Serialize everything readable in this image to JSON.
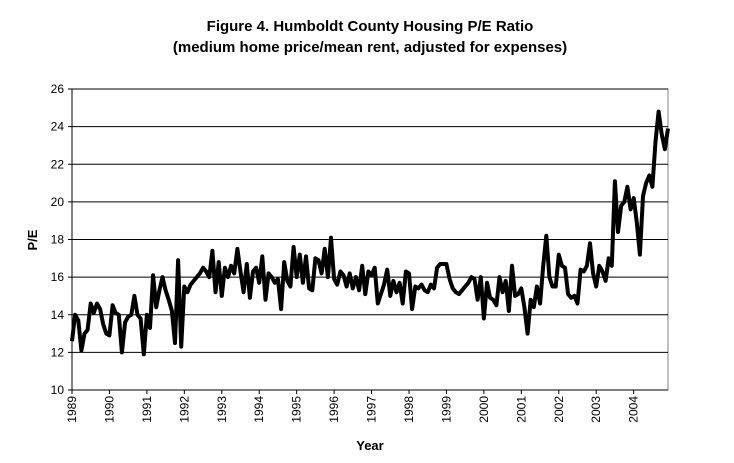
{
  "chart_data": {
    "type": "line",
    "title": "Figure 4. Humboldt County Housing P/E Ratio",
    "subtitle": "(medium home price/mean rent, adjusted for expenses)",
    "x_label": "Year",
    "y_label": "P/E",
    "color": "#000000",
    "grid": true,
    "xlim": [
      1989,
      2004.917
    ],
    "ylim": [
      10,
      26
    ],
    "xticks": [
      1989,
      1990,
      1991,
      1992,
      1993,
      1994,
      1995,
      1996,
      1997,
      1998,
      1999,
      2000,
      2001,
      2002,
      2003,
      2004
    ],
    "yticks": [
      10,
      12,
      14,
      16,
      18,
      20,
      22,
      24,
      26
    ],
    "x": [
      1989,
      1989.083,
      1989.167,
      1989.25,
      1989.333,
      1989.417,
      1989.5,
      1989.583,
      1989.667,
      1989.75,
      1989.833,
      1989.917,
      1990,
      1990.083,
      1990.167,
      1990.25,
      1990.333,
      1990.417,
      1990.5,
      1990.583,
      1990.667,
      1990.75,
      1990.833,
      1990.917,
      1991,
      1991.083,
      1991.167,
      1991.25,
      1991.333,
      1991.417,
      1991.5,
      1991.583,
      1991.667,
      1991.75,
      1991.833,
      1991.917,
      1992,
      1992.083,
      1992.167,
      1992.25,
      1992.333,
      1992.417,
      1992.5,
      1992.583,
      1992.667,
      1992.75,
      1992.833,
      1992.917,
      1993,
      1993.083,
      1993.167,
      1993.25,
      1993.333,
      1993.417,
      1993.5,
      1993.583,
      1993.667,
      1993.75,
      1993.833,
      1993.917,
      1994,
      1994.083,
      1994.167,
      1994.25,
      1994.333,
      1994.417,
      1994.5,
      1994.583,
      1994.667,
      1994.75,
      1994.833,
      1994.917,
      1995,
      1995.083,
      1995.167,
      1995.25,
      1995.333,
      1995.417,
      1995.5,
      1995.583,
      1995.667,
      1995.75,
      1995.833,
      1995.917,
      1996,
      1996.083,
      1996.167,
      1996.25,
      1996.333,
      1996.417,
      1996.5,
      1996.583,
      1996.667,
      1996.75,
      1996.833,
      1996.917,
      1997,
      1997.083,
      1997.167,
      1997.25,
      1997.333,
      1997.417,
      1997.5,
      1997.583,
      1997.667,
      1997.75,
      1997.833,
      1997.917,
      1998,
      1998.083,
      1998.167,
      1998.25,
      1998.333,
      1998.417,
      1998.5,
      1998.583,
      1998.667,
      1998.75,
      1998.833,
      1998.917,
      1999,
      1999.083,
      1999.167,
      1999.25,
      1999.333,
      1999.417,
      1999.5,
      1999.583,
      1999.667,
      1999.75,
      1999.833,
      1999.917,
      2000,
      2000.083,
      2000.167,
      2000.25,
      2000.333,
      2000.417,
      2000.5,
      2000.583,
      2000.667,
      2000.75,
      2000.833,
      2000.917,
      2001,
      2001.083,
      2001.167,
      2001.25,
      2001.333,
      2001.417,
      2001.5,
      2001.583,
      2001.667,
      2001.75,
      2001.833,
      2001.917,
      2002,
      2002.083,
      2002.167,
      2002.25,
      2002.333,
      2002.417,
      2002.5,
      2002.583,
      2002.667,
      2002.75,
      2002.833,
      2002.917,
      2003,
      2003.083,
      2003.167,
      2003.25,
      2003.333,
      2003.417,
      2003.5,
      2003.583,
      2003.667,
      2003.75,
      2003.833,
      2003.917,
      2004,
      2004.083,
      2004.167,
      2004.25,
      2004.333,
      2004.417,
      2004.5,
      2004.583,
      2004.667,
      2004.75,
      2004.833,
      2004.917
    ],
    "values": [
      12.6,
      14.0,
      13.7,
      12.1,
      13.0,
      13.2,
      14.6,
      14.1,
      14.6,
      14.3,
      13.5,
      13.0,
      12.9,
      14.5,
      14.1,
      14.0,
      12.0,
      13.6,
      13.9,
      14.0,
      15.0,
      14.0,
      13.8,
      11.9,
      14.0,
      13.3,
      16.1,
      14.4,
      15.3,
      16.0,
      15.3,
      14.8,
      14.2,
      12.5,
      16.9,
      12.3,
      15.5,
      15.2,
      15.6,
      15.8,
      16.0,
      16.2,
      16.5,
      16.3,
      16.0,
      17.4,
      15.2,
      16.8,
      15.0,
      16.5,
      16.0,
      16.6,
      16.2,
      17.5,
      16.3,
      15.2,
      16.7,
      14.9,
      16.3,
      16.5,
      15.7,
      17.1,
      14.8,
      16.2,
      16.0,
      15.7,
      15.9,
      14.3,
      16.8,
      15.8,
      15.5,
      17.6,
      16.0,
      17.2,
      15.7,
      17.1,
      15.4,
      15.3,
      17.0,
      16.9,
      16.2,
      17.5,
      16.0,
      18.1,
      15.9,
      15.6,
      16.3,
      16.1,
      15.5,
      16.2,
      15.4,
      16.0,
      15.3,
      16.6,
      15.1,
      16.3,
      16.1,
      16.5,
      14.6,
      15.1,
      15.6,
      16.4,
      15.0,
      15.8,
      15.2,
      15.7,
      14.6,
      16.3,
      16.2,
      14.3,
      15.5,
      15.4,
      15.6,
      15.3,
      15.2,
      15.6,
      15.4,
      16.5,
      16.7,
      16.7,
      16.7,
      15.9,
      15.4,
      15.2,
      15.1,
      15.3,
      15.5,
      15.7,
      16.0,
      15.9,
      14.8,
      16.0,
      13.8,
      15.7,
      14.9,
      14.8,
      14.5,
      16.0,
      15.2,
      15.8,
      14.2,
      16.6,
      15.0,
      15.1,
      15.4,
      14.4,
      13.0,
      14.8,
      14.4,
      15.5,
      14.6,
      16.6,
      18.2,
      16.0,
      15.5,
      15.5,
      17.2,
      16.6,
      16.5,
      15.1,
      14.9,
      15.0,
      14.6,
      16.4,
      16.3,
      16.6,
      17.8,
      16.2,
      15.5,
      16.6,
      16.3,
      15.8,
      17.0,
      16.6,
      21.1,
      18.4,
      19.8,
      20.0,
      20.8,
      19.6,
      20.2,
      18.9,
      17.2,
      20.3,
      21.0,
      21.4,
      20.8,
      23.2,
      24.8,
      23.6,
      22.8,
      23.9
    ]
  }
}
